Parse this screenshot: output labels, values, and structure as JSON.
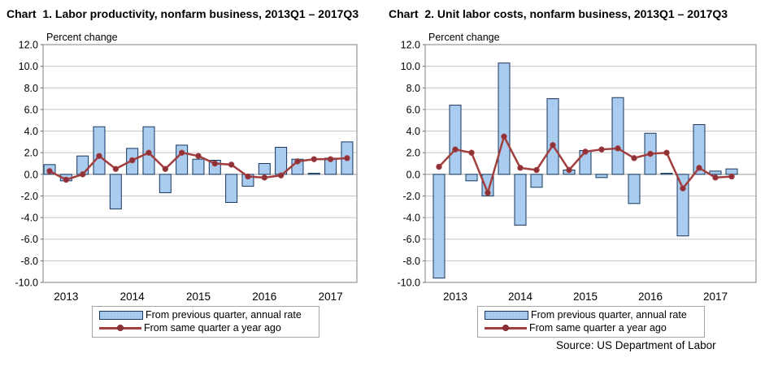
{
  "source_note": "Source: US Department of Labor",
  "legend": {
    "bar_label": "From previous quarter, annual rate",
    "line_label": "From same quarter a year ago"
  },
  "axis": {
    "ylabel": "Percent change",
    "ytick_labels": [
      "12.0",
      "10.0",
      "8.0",
      "6.0",
      "4.0",
      "2.0",
      "0.0",
      "-2.0",
      "-4.0",
      "-6.0",
      "-8.0",
      "-10.0"
    ],
    "ymin": -10,
    "ymax": 12,
    "years": [
      "2013",
      "2014",
      "2015",
      "2016",
      "2017"
    ],
    "grid": true,
    "legend_position": "bottom"
  },
  "colors": {
    "bar_fill": "#A9CCEF",
    "bar_stroke": "#17375E",
    "line": "#A33E3E",
    "marker": "#8E3038",
    "grid": "#C6C6C6",
    "zero_line": "#9A9A9A",
    "plot_border": "#808080",
    "text": "#000000"
  },
  "chart_data": [
    {
      "type": "bar",
      "title": "Chart  1. Labor productivity, nonfarm business, 2013Q1 – 2017Q3",
      "xlabel": "",
      "ylabel": "Percent change",
      "ylim": [
        -10,
        12
      ],
      "categories": [
        "2013Q1",
        "2013Q2",
        "2013Q3",
        "2013Q4",
        "2014Q1",
        "2014Q2",
        "2014Q3",
        "2014Q4",
        "2015Q1",
        "2015Q2",
        "2015Q3",
        "2015Q4",
        "2016Q1",
        "2016Q2",
        "2016Q3",
        "2016Q4",
        "2017Q1",
        "2017Q2",
        "2017Q3"
      ],
      "series": [
        {
          "name": "From previous quarter, annual rate",
          "type": "bar",
          "values": [
            0.9,
            -0.6,
            1.7,
            4.4,
            -3.2,
            2.4,
            4.4,
            -1.7,
            2.7,
            1.4,
            1.3,
            -2.6,
            -1.1,
            1.0,
            2.5,
            1.4,
            0.1,
            1.5,
            3.0
          ]
        },
        {
          "name": "From same quarter a year ago",
          "type": "line",
          "values": [
            0.3,
            -0.5,
            0.0,
            1.7,
            0.5,
            1.3,
            2.0,
            0.5,
            2.0,
            1.7,
            1.0,
            0.9,
            -0.2,
            -0.3,
            -0.1,
            1.2,
            1.4,
            1.4,
            1.5
          ]
        }
      ]
    },
    {
      "type": "bar",
      "title": "Chart  2. Unit labor costs, nonfarm business, 2013Q1 – 2017Q3",
      "xlabel": "",
      "ylabel": "Percent change",
      "ylim": [
        -10,
        12
      ],
      "categories": [
        "2013Q1",
        "2013Q2",
        "2013Q3",
        "2013Q4",
        "2014Q1",
        "2014Q2",
        "2014Q3",
        "2014Q4",
        "2015Q1",
        "2015Q2",
        "2015Q3",
        "2015Q4",
        "2016Q1",
        "2016Q2",
        "2016Q3",
        "2016Q4",
        "2017Q1",
        "2017Q2",
        "2017Q3"
      ],
      "series": [
        {
          "name": "From previous quarter, annual rate",
          "type": "bar",
          "values": [
            -9.6,
            6.4,
            -0.6,
            -2.0,
            10.3,
            -4.7,
            -1.2,
            7.0,
            0.4,
            2.2,
            -0.3,
            7.1,
            -2.7,
            3.8,
            0.1,
            -5.7,
            4.6,
            0.3,
            0.5
          ]
        },
        {
          "name": "From same quarter a year ago",
          "type": "line",
          "values": [
            0.7,
            2.3,
            2.0,
            -1.7,
            3.5,
            0.6,
            0.4,
            2.7,
            0.4,
            2.1,
            2.3,
            2.4,
            1.5,
            1.9,
            2.0,
            -1.3,
            0.6,
            -0.3,
            -0.2
          ]
        }
      ]
    }
  ]
}
